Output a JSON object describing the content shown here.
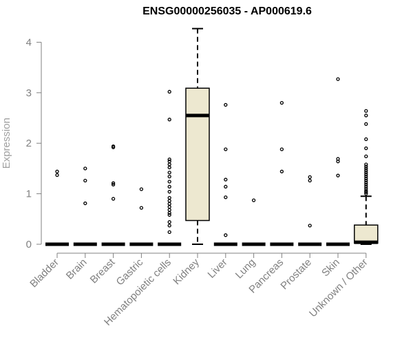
{
  "chart_data": {
    "type": "box",
    "title": "ENSG00000256035 - AP000619.6",
    "xlabel": "",
    "ylabel": "Expression",
    "ylim": [
      0,
      4.3
    ],
    "yticks": [
      0,
      1,
      2,
      3,
      4
    ],
    "grid": false,
    "categories": [
      "Bladder",
      "Brain",
      "Breast",
      "Gastric",
      "Hematopoietic cells",
      "Kidney",
      "Liver",
      "Lung",
      "Pancreas",
      "Prostate",
      "Skin",
      "Unknown / Other"
    ],
    "boxes": [
      {
        "category": "Bladder",
        "min": 0,
        "q1": 0,
        "median": 0,
        "q3": 0,
        "max": 0,
        "outliers": [
          1.37,
          1.44
        ]
      },
      {
        "category": "Brain",
        "min": 0,
        "q1": 0,
        "median": 0,
        "q3": 0,
        "max": 0,
        "outliers": [
          0.81,
          1.26,
          1.5
        ]
      },
      {
        "category": "Breast",
        "min": 0,
        "q1": 0,
        "median": 0,
        "q3": 0,
        "max": 0,
        "outliers": [
          0.9,
          1.18,
          1.21,
          1.92,
          1.94
        ]
      },
      {
        "category": "Gastric",
        "min": 0,
        "q1": 0,
        "median": 0,
        "q3": 0,
        "max": 0,
        "outliers": [
          0.72,
          1.09
        ]
      },
      {
        "category": "Hematopoietic cells",
        "min": 0,
        "q1": 0,
        "median": 0,
        "q3": 0,
        "max": 0,
        "outliers": [
          0.24,
          0.37,
          0.44,
          0.58,
          0.62,
          0.68,
          0.74,
          0.8,
          0.86,
          0.92,
          1.04,
          1.14,
          1.24,
          1.34,
          1.42,
          1.52,
          1.58,
          1.64,
          1.68,
          2.47,
          3.02
        ]
      },
      {
        "category": "Kidney",
        "min": 0,
        "q1": 0.47,
        "median": 2.55,
        "q3": 3.09,
        "max": 4.27,
        "outliers": []
      },
      {
        "category": "Liver",
        "min": 0,
        "q1": 0,
        "median": 0,
        "q3": 0,
        "max": 0,
        "outliers": [
          0.18,
          0.93,
          1.14,
          1.28,
          1.88,
          2.76
        ]
      },
      {
        "category": "Lung",
        "min": 0,
        "q1": 0,
        "median": 0,
        "q3": 0,
        "max": 0,
        "outliers": [
          0.87
        ]
      },
      {
        "category": "Pancreas",
        "min": 0,
        "q1": 0,
        "median": 0,
        "q3": 0,
        "max": 0,
        "outliers": [
          1.44,
          1.88,
          2.8
        ]
      },
      {
        "category": "Prostate",
        "min": 0,
        "q1": 0,
        "median": 0,
        "q3": 0,
        "max": 0,
        "outliers": [
          0.37,
          1.26,
          1.33
        ]
      },
      {
        "category": "Skin",
        "min": 0,
        "q1": 0,
        "median": 0,
        "q3": 0,
        "max": 0,
        "outliers": [
          1.36,
          1.64,
          1.69,
          3.27
        ]
      },
      {
        "category": "Unknown / Other",
        "min": 0,
        "q1": 0.02,
        "median": 0.04,
        "q3": 0.38,
        "max": 0.95,
        "outliers": [
          1.0,
          1.03,
          1.06,
          1.1,
          1.14,
          1.18,
          1.22,
          1.26,
          1.3,
          1.34,
          1.38,
          1.42,
          1.46,
          1.5,
          1.54,
          1.58,
          1.74,
          1.9,
          2.08,
          2.38,
          2.55,
          2.64
        ]
      }
    ],
    "colors": {
      "box_fill": "#ede8d0",
      "box_stroke": "#000000",
      "axis": "#808080",
      "text": "#808080"
    }
  }
}
